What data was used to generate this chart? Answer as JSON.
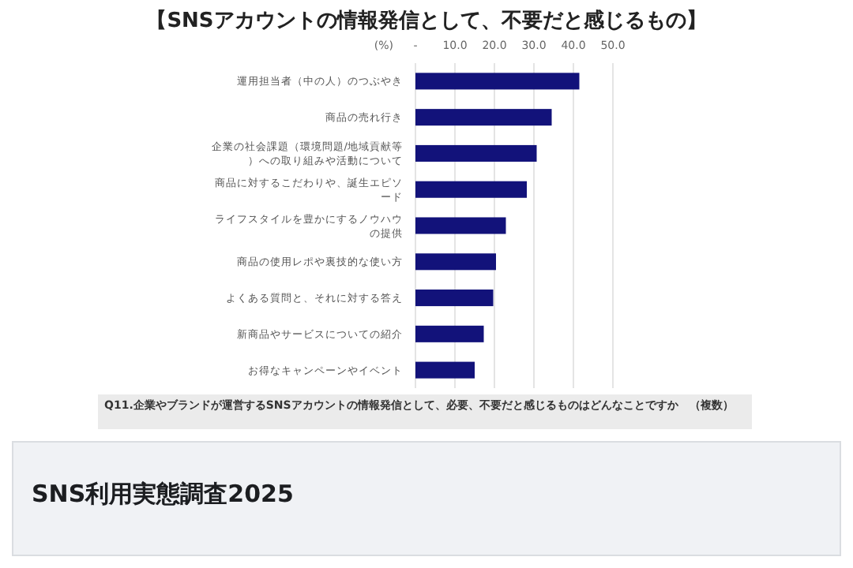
{
  "chart_data": {
    "type": "bar",
    "orientation": "horizontal",
    "title": "【SNSアカウントの情報発信として、不要だと感じるもの】",
    "xlabel": "(%)",
    "categories": [
      "運用担当者（中の人）のつぶやき",
      "商品の売れ行き",
      "企業の社会課題（環境問題/地域貢献等）への取り組みや活動について",
      "商品に対するこだわりや、誕生エピソード",
      "ライフスタイルを豊かにするノウハウの提供",
      "商品の使用レポや裏技的な使い方",
      "よくある質問と、それに対する答え",
      "新商品やサービスについての紹介",
      "お得なキャンペーンやイベント"
    ],
    "values": [
      41.5,
      34.5,
      30.7,
      28.2,
      22.9,
      20.4,
      19.7,
      17.3,
      15.0
    ],
    "color": "#12127a",
    "xlim": [
      0,
      50
    ],
    "xticks": [
      {
        "value": 0,
        "label": "-"
      },
      {
        "value": 10,
        "label": "10.0"
      },
      {
        "value": 20,
        "label": "20.0"
      },
      {
        "value": 30,
        "label": "30.0"
      },
      {
        "value": 40,
        "label": "40.0"
      },
      {
        "value": 50,
        "label": "50.0"
      }
    ],
    "grid": "x",
    "annotations": [
      "Q11.企業やブランドが運営するSNSアカウントの情報発信として、必要、不要だと感じるものはどんなことですか　（複数）",
      "SNS利用実態調査2025"
    ]
  }
}
